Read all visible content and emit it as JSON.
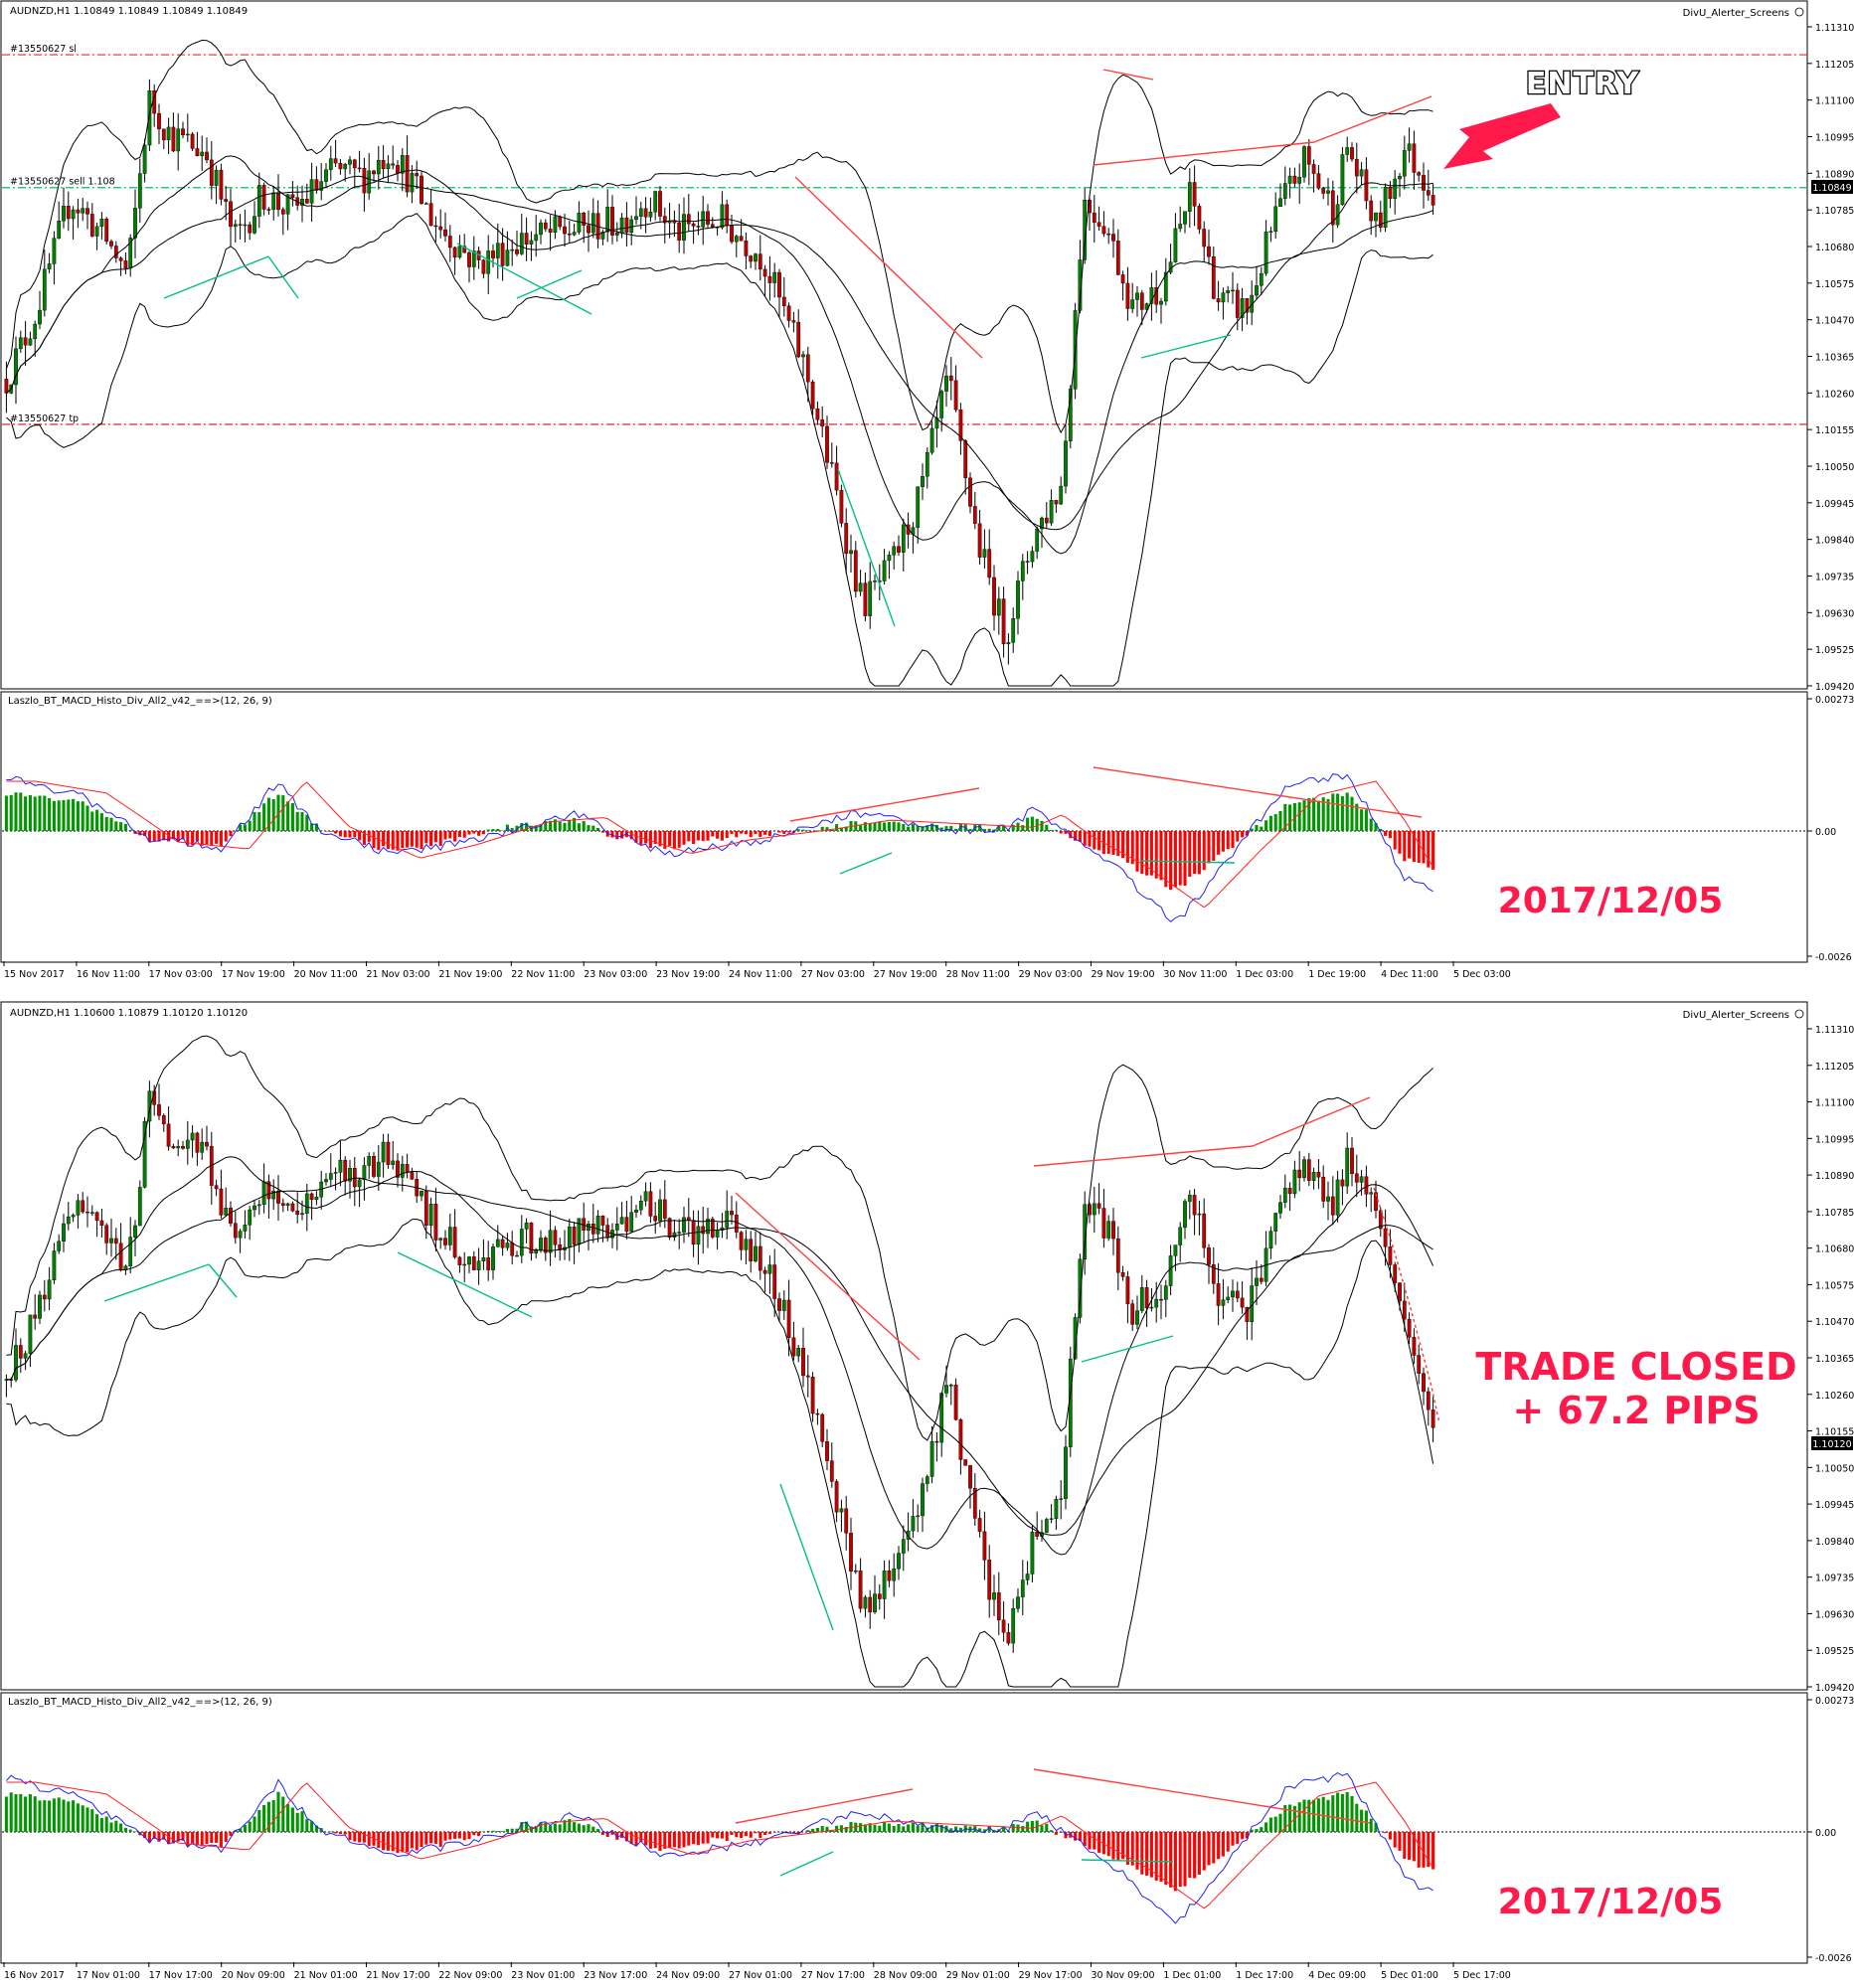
{
  "chart_data": [
    {
      "type": "candlestick",
      "header": {
        "symbol": "AUDNZD,H1",
        "ohlc": "1.10849 1.10849 1.10849 1.10849",
        "indicator_name": "DivU_Alerter_Screens"
      },
      "y_ticks": [
        "1.11310",
        "1.11205",
        "1.11100",
        "1.10995",
        "1.10890",
        "1.10785",
        "1.10680",
        "1.10575",
        "1.10470",
        "1.10365",
        "1.10260",
        "1.10155",
        "1.10050",
        "1.09945",
        "1.09840",
        "1.09735",
        "1.09630",
        "1.09525",
        "1.09420"
      ],
      "ylim": [
        1.0942,
        1.1131
      ],
      "current_price": "1.10849",
      "order_lines": [
        {
          "label": "#13550627 sl",
          "price": 1.1123,
          "color": "#e8262e"
        },
        {
          "label": "#13550627 sell 1.108",
          "price": 1.10849,
          "color": "#00c060"
        },
        {
          "label": "#13550627 tp",
          "price": 1.1017,
          "color": "#e8262e"
        }
      ],
      "x_labels": [
        "15 Nov 2017",
        "16 Nov 11:00",
        "17 Nov 03:00",
        "17 Nov 19:00",
        "20 Nov 11:00",
        "21 Nov 03:00",
        "21 Nov 19:00",
        "22 Nov 11:00",
        "23 Nov 03:00",
        "23 Nov 19:00",
        "24 Nov 11:00",
        "27 Nov 03:00",
        "27 Nov 19:00",
        "28 Nov 11:00",
        "29 Nov 03:00",
        "29 Nov 19:00",
        "30 Nov 11:00",
        "1 Dec 03:00",
        "1 Dec 19:00",
        "4 Dec 11:00",
        "5 Dec 03:00"
      ],
      "annotation": "ENTRY"
    },
    {
      "type": "histogram",
      "indicator": "Laszlo_BT_MACD_Histo_Div_All2_v42_==>(12, 26, 9)",
      "y_ticks": [
        "0.002739",
        "0.00",
        "-0.0026"
      ],
      "ylim": [
        -0.0026,
        0.002739
      ],
      "annotation": "2017/12/05"
    },
    {
      "type": "candlestick",
      "header": {
        "symbol": "AUDNZD,H1",
        "ohlc": "1.10600 1.10879 1.10120 1.10120",
        "indicator_name": "DivU_Alerter_Screens"
      },
      "y_ticks": [
        "1.11310",
        "1.11205",
        "1.11100",
        "1.10995",
        "1.10890",
        "1.10785",
        "1.10680",
        "1.10575",
        "1.10470",
        "1.10365",
        "1.10260",
        "1.10155",
        "1.10050",
        "1.09945",
        "1.09840",
        "1.09735",
        "1.09630",
        "1.09525",
        "1.09420"
      ],
      "ylim": [
        1.0942,
        1.1131
      ],
      "current_price": "1.10120",
      "x_labels": [
        "16 Nov 2017",
        "17 Nov 01:00",
        "17 Nov 17:00",
        "20 Nov 09:00",
        "21 Nov 01:00",
        "21 Nov 17:00",
        "22 Nov 09:00",
        "23 Nov 01:00",
        "23 Nov 17:00",
        "24 Nov 09:00",
        "27 Nov 01:00",
        "27 Nov 17:00",
        "28 Nov 09:00",
        "29 Nov 01:00",
        "29 Nov 17:00",
        "30 Nov 09:00",
        "1 Dec 01:00",
        "1 Dec 17:00",
        "4 Dec 09:00",
        "5 Dec 01:00",
        "5 Dec 17:00"
      ],
      "annotation_lines": [
        "TRADE CLOSED",
        "+ 67.2 PIPS"
      ]
    },
    {
      "type": "histogram",
      "indicator": "Laszlo_BT_MACD_Histo_Div_All2_v42_==>(12, 26, 9)",
      "y_ticks": [
        "0.002739",
        "0.00",
        "-0.0026"
      ],
      "ylim": [
        -0.0026,
        0.002739
      ],
      "annotation": "2017/12/05"
    }
  ],
  "colors": {
    "bull": "#008000",
    "bear": "#c00000",
    "macd_pos": "#009600",
    "macd_neg": "#ff0000",
    "macd_line": "#2020ff",
    "signal_line": "#ff2020",
    "bands": "#000000",
    "div_green": "#00c080",
    "div_red": "#ff4040",
    "accent": "#ff1a4b",
    "entry_marker": "#b01020"
  }
}
